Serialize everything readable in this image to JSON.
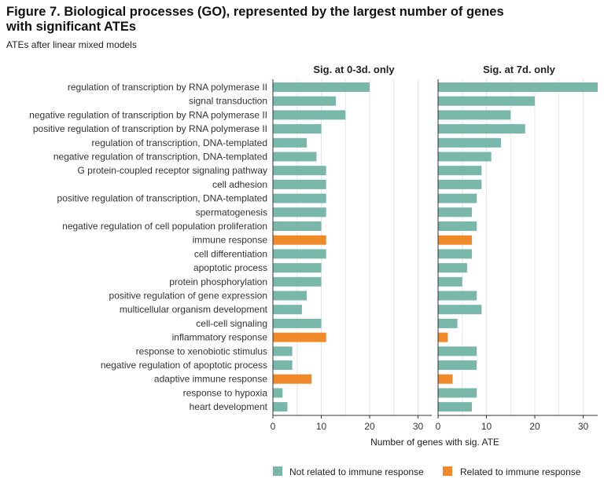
{
  "header": {
    "title": "Figure 7. Biological processes (GO), represented by the largest number of genes with significant ATEs",
    "subtitle": "ATEs after linear mixed models"
  },
  "colors": {
    "not_immune": "#78b7aa",
    "immune": "#f0892a",
    "grid": "#e6e6e6",
    "axis": "#333333"
  },
  "chart_data": {
    "type": "bar",
    "orientation": "horizontal",
    "categories": [
      "regulation of transcription by RNA polymerase II",
      "signal transduction",
      "negative regulation of transcription by RNA polymerase II",
      "positive regulation of transcription by RNA polymerase II",
      "regulation of transcription, DNA-templated",
      "negative regulation of transcription, DNA-templated",
      "G protein-coupled receptor signaling pathway",
      "cell adhesion",
      "positive regulation of transcription, DNA-templated",
      "spermatogenesis",
      "negative regulation of cell population proliferation",
      "immune response",
      "cell differentiation",
      "apoptotic process",
      "protein phosphorylation",
      "positive regulation of gene expression",
      "multicellular organism development",
      "cell-cell signaling",
      "inflammatory response",
      "response to xenobiotic stimulus",
      "negative regulation of apoptotic process",
      "adaptive immune response",
      "response to hypoxia",
      "heart development"
    ],
    "immune_related": [
      false,
      false,
      false,
      false,
      false,
      false,
      false,
      false,
      false,
      false,
      false,
      true,
      false,
      false,
      false,
      false,
      false,
      false,
      true,
      false,
      false,
      true,
      false,
      false
    ],
    "panels": [
      {
        "title": "Sig. at 0-3d. only",
        "values": [
          20,
          13,
          15,
          10,
          7,
          9,
          11,
          11,
          11,
          11,
          10,
          11,
          11,
          10,
          10,
          7,
          6,
          10,
          11,
          4,
          4,
          8,
          2,
          3
        ]
      },
      {
        "title": "Sig. at 7d. only",
        "values": [
          33,
          20,
          15,
          18,
          13,
          11,
          9,
          9,
          8,
          7,
          8,
          7,
          7,
          6,
          5,
          8,
          9,
          4,
          2,
          8,
          8,
          3,
          8,
          7
        ]
      }
    ],
    "xlim": [
      0,
      33
    ],
    "xticks": [
      0,
      10,
      20,
      30
    ],
    "xlabel": "Number of genes with sig. ATE",
    "legend": {
      "position": "bottom-right",
      "entries": [
        {
          "label": "Not related to immune response",
          "color": "#78b7aa"
        },
        {
          "label": "Related to immune response",
          "color": "#f0892a"
        }
      ]
    }
  }
}
